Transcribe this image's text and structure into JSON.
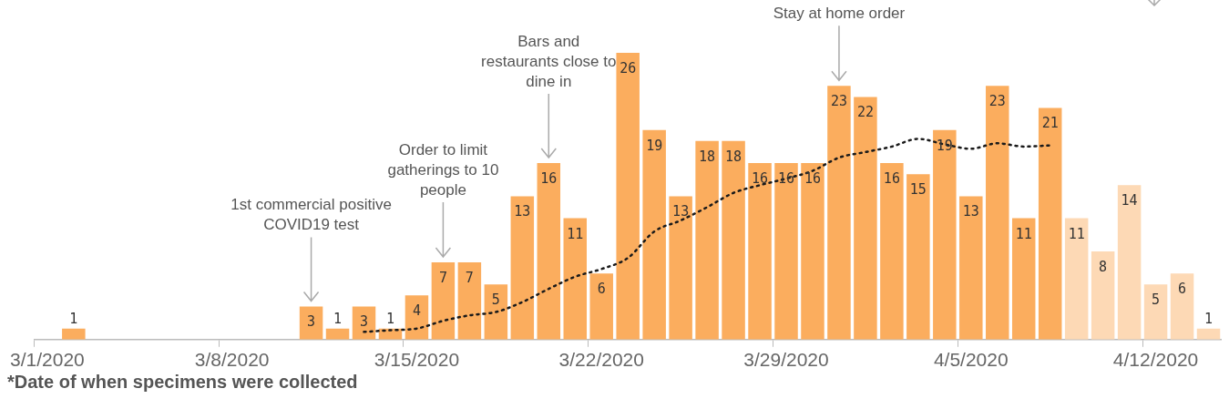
{
  "chart_data": {
    "type": "bar",
    "categories": [
      "3/1/2020",
      null,
      null,
      null,
      null,
      null,
      null,
      "3/8/2020",
      null,
      null,
      null,
      null,
      null,
      null,
      "3/15/2020",
      null,
      null,
      null,
      null,
      null,
      null,
      "3/22/2020",
      null,
      null,
      null,
      null,
      null,
      null,
      "3/29/2020",
      null,
      null,
      null,
      null,
      null,
      null,
      "4/5/2020",
      null,
      null,
      null,
      null,
      null,
      null,
      "4/12/2020",
      null,
      null
    ],
    "series": [
      {
        "value_labels": [
          null,
          "1",
          null,
          null,
          null,
          null,
          null,
          null,
          null,
          null,
          "3",
          "1",
          "3",
          "1",
          "4",
          "7",
          "7",
          "5",
          "13",
          "16",
          "11",
          "6",
          "26",
          "19",
          "13",
          "18",
          "18",
          "16",
          "16",
          "16",
          "23",
          "22",
          "16",
          "15",
          "19",
          "13",
          "23",
          "11",
          "21",
          "11",
          "8",
          "14",
          "5",
          "6",
          "1"
        ],
        "values": [
          null,
          1,
          null,
          null,
          null,
          null,
          null,
          null,
          null,
          null,
          3,
          1,
          3,
          1,
          4,
          7,
          7,
          5,
          13,
          16,
          11,
          6,
          26,
          19,
          13,
          18,
          18,
          16,
          16,
          16,
          23,
          22,
          16,
          15,
          19,
          13,
          23,
          11,
          21,
          11,
          8,
          14,
          5,
          6,
          1
        ],
        "colors": [
          "#fbad5e",
          "#fbad5e",
          "#fbad5e",
          "#fbad5e",
          "#fbad5e",
          "#fbad5e",
          "#fbad5e",
          "#fbad5e",
          "#fbad5e",
          "#fbad5e",
          "#fbad5e",
          "#fbad5e",
          "#fbad5e",
          "#fbad5e",
          "#fbad5e",
          "#fbad5e",
          "#fbad5e",
          "#fbad5e",
          "#fbad5e",
          "#fbad5e",
          "#fbad5e",
          "#fbad5e",
          "#fbad5e",
          "#fbad5e",
          "#fbad5e",
          "#fbad5e",
          "#fbad5e",
          "#fbad5e",
          "#fbad5e",
          "#fbad5e",
          "#fbad5e",
          "#fbad5e",
          "#fbad5e",
          "#fbad5e",
          "#fbad5e",
          "#fbad5e",
          "#fbad5e",
          "#fbad5e",
          "#fbad5e",
          "#fdd9b5",
          "#fdd9b5",
          "#fdd9b5",
          "#fdd9b5",
          "#fdd9b5",
          "#fdd9b5"
        ]
      },
      {
        "type": "line",
        "color": "#1a1a1a",
        "line_style": "dotted",
        "marker": "none",
        "values": [
          null,
          null,
          null,
          null,
          null,
          null,
          null,
          null,
          null,
          null,
          null,
          null,
          0.7,
          0.85,
          1.0,
          1.7,
          2.2,
          2.5,
          3.4,
          4.6,
          5.7,
          6.4,
          7.4,
          9.8,
          10.8,
          12,
          13.3,
          14,
          14.6,
          15.3,
          16.5,
          17,
          17.5,
          18.2,
          17.7,
          17.3,
          17.8,
          17.5,
          17.6,
          null,
          null,
          null,
          null,
          null,
          null
        ]
      }
    ],
    "legend": false,
    "grid": false,
    "tick_labels": "x",
    "annotations": [
      "1st commercial positive COVID19 test",
      "Order to limit gatherings to 10 people",
      "Bars and restaurants close to dine in",
      "Stay at home order",
      "*Date of when specimens were collected"
    ]
  }
}
